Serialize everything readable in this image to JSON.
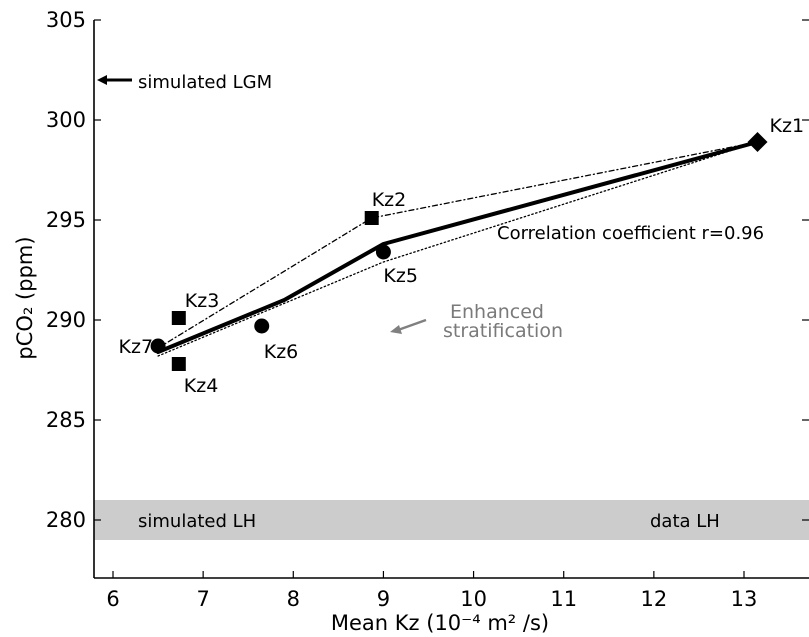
{
  "chart_data": {
    "type": "scatter",
    "title": "",
    "xlabel": "Mean Kz (10⁻⁴ m² /s)",
    "ylabel": "pCO₂ (ppm)",
    "xlim": [
      5.8,
      13.8
    ],
    "ylim": [
      277.5,
      305
    ],
    "x_ticks": [
      "6",
      "7",
      "8",
      "9",
      "10",
      "11",
      "12",
      "13"
    ],
    "y_ticks": [
      "280",
      "285",
      "290",
      "295",
      "300",
      "305"
    ],
    "grid": false,
    "points": [
      {
        "label": "Kz1",
        "x": 13.15,
        "y": 298.9,
        "marker": "diamond"
      },
      {
        "label": "Kz2",
        "x": 8.87,
        "y": 295.1,
        "marker": "square"
      },
      {
        "label": "Kz3",
        "x": 6.73,
        "y": 290.1,
        "marker": "square"
      },
      {
        "label": "Kz4",
        "x": 6.73,
        "y": 287.8,
        "marker": "square"
      },
      {
        "label": "Kz5",
        "x": 9.0,
        "y": 293.4,
        "marker": "circle"
      },
      {
        "label": "Kz6",
        "x": 7.65,
        "y": 289.7,
        "marker": "circle"
      },
      {
        "label": "Kz7",
        "x": 6.5,
        "y": 288.7,
        "marker": "circle"
      }
    ],
    "lines": [
      {
        "style": "solid",
        "x": [
          6.5,
          7.9,
          9.0,
          13.15
        ],
        "y": [
          288.4,
          291.0,
          293.8,
          298.9
        ]
      },
      {
        "style": "dashdot",
        "x": [
          6.5,
          8.87,
          13.15
        ],
        "y": [
          288.6,
          295.1,
          298.9
        ]
      },
      {
        "style": "dotted",
        "x": [
          6.5,
          9.0,
          13.15
        ],
        "y": [
          288.2,
          292.9,
          298.9
        ]
      }
    ],
    "band": {
      "y_range": [
        279.0,
        281.0
      ],
      "color": "#cccccc"
    },
    "annotations": {
      "simulated_lgm": {
        "text": "simulated LGM",
        "y": 302.0
      },
      "correlation": "Correlation coefficient r=0.96",
      "enhanced_line1": "Enhanced",
      "enhanced_line2": "stratification",
      "simulated_lh": "simulated LH",
      "data_lh": "data LH"
    }
  }
}
